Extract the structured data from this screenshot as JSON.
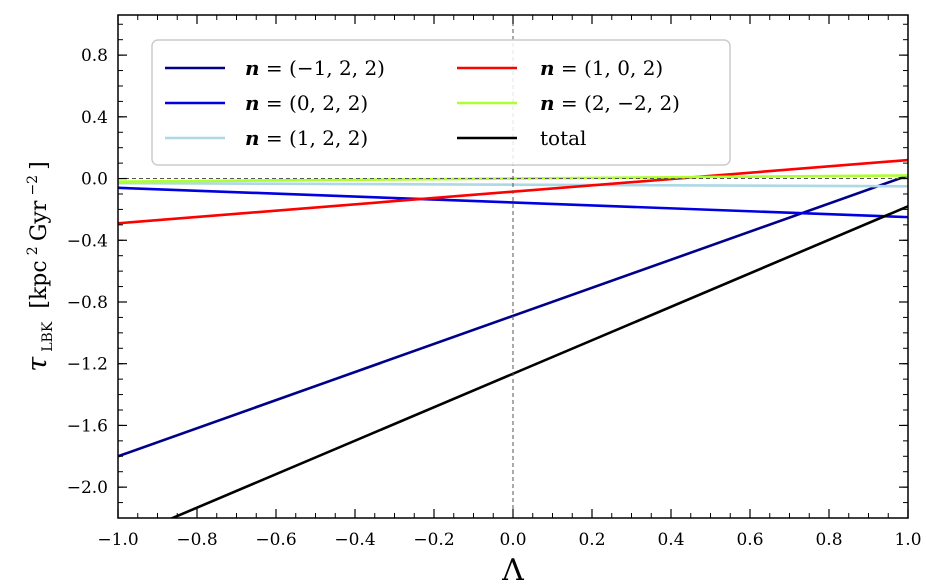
{
  "chart_data": {
    "type": "line",
    "xlabel": "Λ",
    "ylabel": {
      "symbol": "τ",
      "subscript": "LBK",
      "units_prefix": "[kpc",
      "units_sup1": "2",
      "units_mid": "Gyr",
      "units_sup2": "−2",
      "units_suffix": "]"
    },
    "xlim": [
      -1.0,
      1.0
    ],
    "ylim": [
      -2.2,
      1.06
    ],
    "xticks": [
      -1.0,
      -0.8,
      -0.6,
      -0.4,
      -0.2,
      0.0,
      0.2,
      0.4,
      0.6,
      0.8,
      1.0
    ],
    "xtick_labels": [
      "−1.0",
      "−0.8",
      "−0.6",
      "−0.4",
      "−0.2",
      "0.0",
      "0.2",
      "0.4",
      "0.6",
      "0.8",
      "1.0"
    ],
    "yticks": [
      0.8,
      0.4,
      0.0,
      -0.4,
      -0.8,
      -1.2,
      -1.6,
      -2.0
    ],
    "ytick_labels": [
      "0.8",
      "0.4",
      "0.0",
      "−0.4",
      "−0.8",
      "−1.2",
      "−1.6",
      "−2.0"
    ],
    "reference_lines": {
      "horizontal_y": 0.0,
      "vertical_x": 0.0,
      "style": "dashed"
    },
    "legend": {
      "position": "upper-left",
      "columns": 2
    },
    "series": [
      {
        "name": "n = (−1, 2, 2)",
        "legend_bold": "n",
        "legend_rest": " = (−1, 2, 2)",
        "color": "#00008b",
        "x": [
          -1.0,
          1.0
        ],
        "y": [
          -1.8,
          0.02
        ]
      },
      {
        "name": "n = (0, 2, 2)",
        "legend_bold": "n",
        "legend_rest": " = (0, 2, 2)",
        "color": "#0000e0",
        "x": [
          -1.0,
          1.0
        ],
        "y": [
          -0.06,
          -0.25
        ]
      },
      {
        "name": "n = (1, 2, 2)",
        "legend_bold": "n",
        "legend_rest": " = (1, 2, 2)",
        "color": "#add8e6",
        "x": [
          -1.0,
          1.0
        ],
        "y": [
          -0.03,
          -0.05
        ]
      },
      {
        "name": "n = (1, 0, 2)",
        "legend_bold": "n",
        "legend_rest": " = (1, 0, 2)",
        "color": "#ff0000",
        "x": [
          -1.0,
          1.0
        ],
        "y": [
          -0.29,
          0.12
        ]
      },
      {
        "name": "n = (2, −2, 2)",
        "legend_bold": "n",
        "legend_rest": " = (2, −2, 2)",
        "color": "#adff2f",
        "x": [
          -1.0,
          1.0
        ],
        "y": [
          -0.02,
          0.02
        ]
      },
      {
        "name": "total",
        "legend_bold": "",
        "legend_rest": "total",
        "color": "#000000",
        "x": [
          -1.0,
          1.0
        ],
        "y": [
          -2.35,
          -0.18
        ]
      }
    ]
  }
}
